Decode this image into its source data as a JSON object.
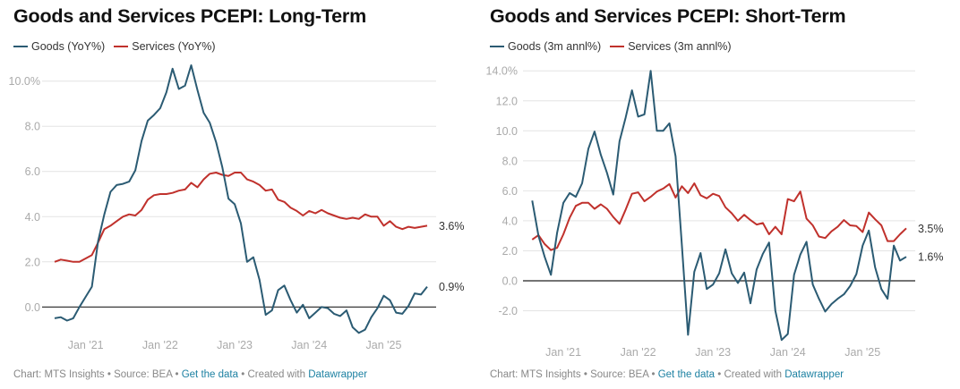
{
  "colors": {
    "goods": "#2b5b73",
    "services": "#c0312c",
    "grid": "#e4e4e4",
    "zero": "#222222"
  },
  "footer": {
    "chart": "Chart: MTS Insights",
    "source": "Source: BEA",
    "get_data": "Get the data",
    "created": "Created with",
    "datawrapper": "Datawrapper",
    "sep": "•"
  },
  "chart_data": [
    {
      "type": "line",
      "title": "Goods and Services PCEPI: Long-Term",
      "x_start": "Aug 2020",
      "x_end": "Aug 2025",
      "frequency": "monthly",
      "x_ticks": [
        "Jan '21",
        "Jan '22",
        "Jan '23",
        "Jan '24",
        "Jan '25"
      ],
      "y_ticks": [
        "0.0",
        "2.0",
        "4.0",
        "6.0",
        "8.0",
        "10.0%"
      ],
      "ylim": [
        -1.2,
        10.7
      ],
      "grid": true,
      "legend": "top-left",
      "series": [
        {
          "name": "Goods (YoY%)",
          "end_label": "0.9%",
          "values": [
            -0.5,
            -0.45,
            -0.6,
            -0.5,
            0.0,
            0.45,
            0.9,
            2.9,
            4.1,
            5.1,
            5.4,
            5.45,
            5.55,
            6.05,
            7.35,
            8.25,
            8.5,
            8.8,
            9.5,
            10.55,
            9.65,
            9.8,
            10.7,
            9.6,
            8.6,
            8.15,
            7.3,
            6.2,
            4.8,
            4.55,
            3.7,
            2.0,
            2.2,
            1.2,
            -0.35,
            -0.15,
            0.75,
            0.95,
            0.3,
            -0.25,
            0.1,
            -0.5,
            -0.25,
            0.0,
            -0.05,
            -0.3,
            -0.4,
            -0.15,
            -0.9,
            -1.15,
            -1.0,
            -0.45,
            -0.05,
            0.5,
            0.3,
            -0.25,
            -0.3,
            0.05,
            0.6,
            0.55,
            0.9
          ]
        },
        {
          "name": "Services (YoY%)",
          "end_label": "3.6%",
          "values": [
            2.0,
            2.1,
            2.05,
            2.0,
            2.0,
            2.15,
            2.3,
            2.85,
            3.45,
            3.6,
            3.8,
            4.0,
            4.1,
            4.05,
            4.3,
            4.75,
            4.95,
            5.0,
            5.0,
            5.05,
            5.15,
            5.2,
            5.5,
            5.3,
            5.65,
            5.9,
            5.95,
            5.85,
            5.8,
            5.95,
            5.95,
            5.65,
            5.55,
            5.4,
            5.15,
            5.2,
            4.75,
            4.65,
            4.4,
            4.25,
            4.05,
            4.25,
            4.15,
            4.3,
            4.15,
            4.05,
            3.95,
            3.9,
            3.95,
            3.9,
            4.1,
            4.0,
            4.0,
            3.6,
            3.8,
            3.55,
            3.45,
            3.55,
            3.5,
            3.55,
            3.6
          ]
        }
      ]
    },
    {
      "type": "line",
      "title": "Goods and Services PCEPI: Short-Term",
      "x_start": "Aug 2020",
      "x_end": "Aug 2025",
      "frequency": "monthly",
      "x_ticks": [
        "Jan '21",
        "Jan '22",
        "Jan '23",
        "Jan '24",
        "Jan '25"
      ],
      "y_ticks": [
        "-2.0",
        "0.0",
        "2.0",
        "4.0",
        "6.0",
        "8.0",
        "10.0",
        "12.0",
        "14.0%"
      ],
      "ylim": [
        -4.0,
        14.0
      ],
      "grid": true,
      "legend": "top-left",
      "series": [
        {
          "name": "Goods (3m annl%)",
          "end_label": "1.6%",
          "values": [
            5.35,
            3.0,
            1.6,
            0.4,
            3.2,
            5.2,
            5.85,
            5.6,
            6.5,
            8.8,
            9.95,
            8.4,
            7.2,
            5.75,
            9.3,
            10.9,
            12.7,
            10.95,
            11.1,
            14.0,
            10.0,
            10.0,
            10.5,
            8.3,
            2.4,
            -3.6,
            0.6,
            1.85,
            -0.55,
            -0.25,
            0.5,
            2.1,
            0.5,
            -0.15,
            0.55,
            -1.5,
            0.75,
            1.8,
            2.55,
            -2.0,
            -3.95,
            -3.55,
            0.4,
            1.75,
            2.6,
            -0.25,
            -1.2,
            -2.05,
            -1.55,
            -1.2,
            -0.9,
            -0.35,
            0.45,
            2.35,
            3.35,
            0.9,
            -0.55,
            -1.2,
            2.35,
            1.35,
            1.6
          ]
        },
        {
          "name": "Services (3m annl%)",
          "end_label": "3.5%",
          "values": [
            2.75,
            3.05,
            2.45,
            2.05,
            2.2,
            3.1,
            4.2,
            5.0,
            5.2,
            5.2,
            4.8,
            5.1,
            4.8,
            4.25,
            3.8,
            4.75,
            5.8,
            5.9,
            5.3,
            5.6,
            5.95,
            6.15,
            6.45,
            5.55,
            6.3,
            5.85,
            6.5,
            5.7,
            5.5,
            5.8,
            5.65,
            4.9,
            4.5,
            4.0,
            4.4,
            4.05,
            3.75,
            3.85,
            3.1,
            3.6,
            3.1,
            5.45,
            5.3,
            5.95,
            4.15,
            3.7,
            2.95,
            2.85,
            3.3,
            3.6,
            4.05,
            3.7,
            3.65,
            3.25,
            4.55,
            4.1,
            3.7,
            2.65,
            2.65,
            3.1,
            3.5
          ]
        }
      ]
    }
  ]
}
